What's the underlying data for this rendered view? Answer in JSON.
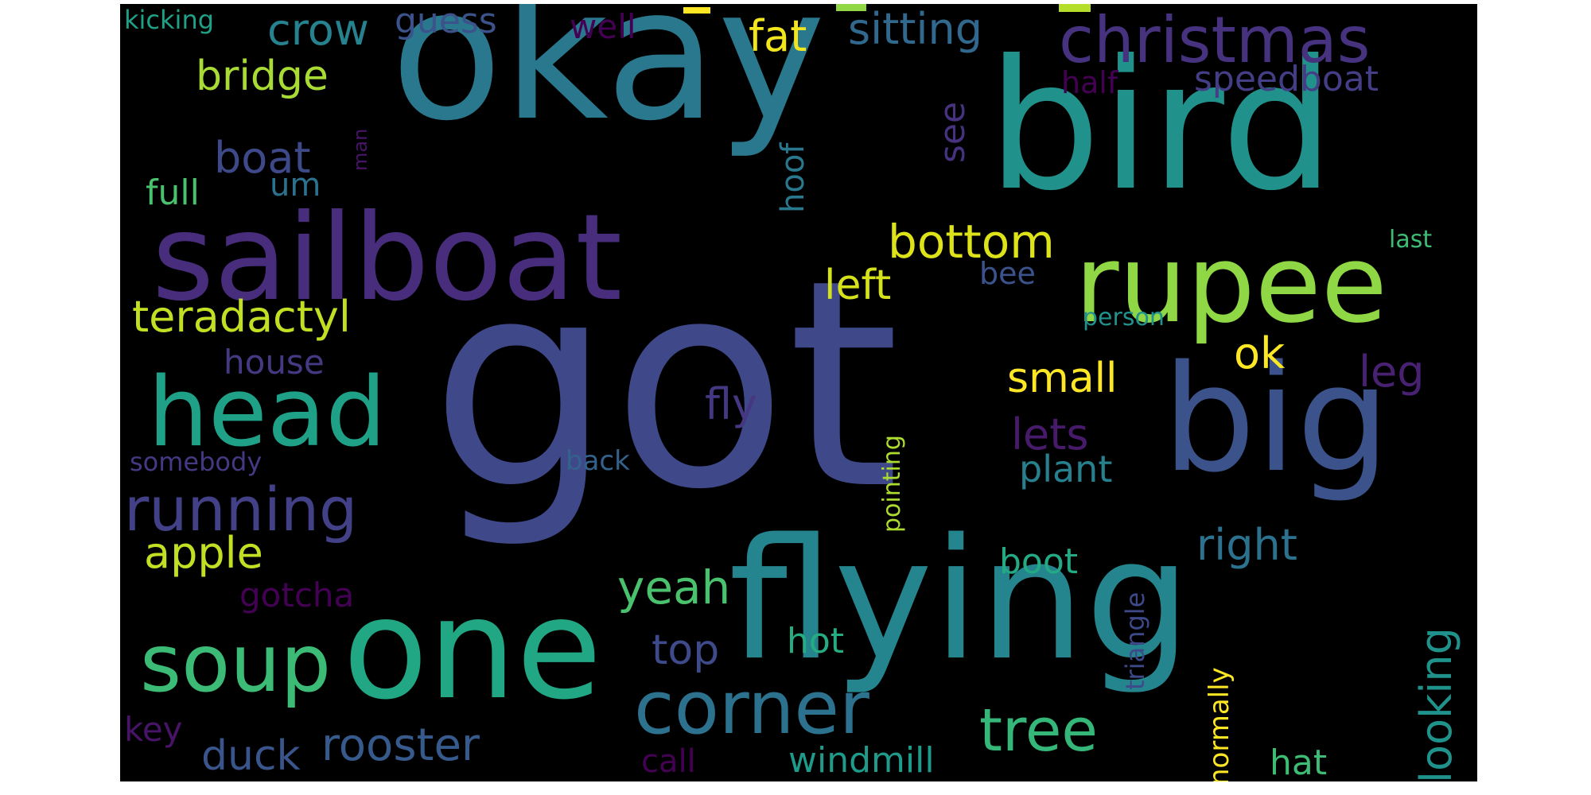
{
  "words": [
    {
      "text": "got",
      "color": "#3f4889"
    },
    {
      "text": "okay",
      "color": "#2a788e"
    },
    {
      "text": "bird",
      "color": "#21918c"
    },
    {
      "text": "sailboat",
      "color": "#472d7b"
    },
    {
      "text": "flying",
      "color": "#25858e"
    },
    {
      "text": "one",
      "color": "#22a785"
    },
    {
      "text": "rupee",
      "color": "#8fd744"
    },
    {
      "text": "big",
      "color": "#3b528b"
    },
    {
      "text": "head",
      "color": "#1fa187"
    },
    {
      "text": "christmas",
      "color": "#46327e"
    },
    {
      "text": "soup",
      "color": "#3bbb75"
    },
    {
      "text": "corner",
      "color": "#2c728e"
    },
    {
      "text": "running",
      "color": "#424086"
    },
    {
      "text": "tree",
      "color": "#35b779"
    },
    {
      "text": "bottom",
      "color": "#dde318"
    },
    {
      "text": "rooster",
      "color": "#375a8c"
    },
    {
      "text": "teradactyl",
      "color": "#c2df23"
    },
    {
      "text": "yeah",
      "color": "#4ac16d"
    },
    {
      "text": "sitting",
      "color": "#31688e"
    },
    {
      "text": "crow",
      "color": "#26828e"
    },
    {
      "text": "bridge",
      "color": "#a8db34"
    },
    {
      "text": "apple",
      "color": "#c2df23"
    },
    {
      "text": "left",
      "color": "#d5e21a"
    },
    {
      "text": "boat",
      "color": "#3e4989"
    },
    {
      "text": "small",
      "color": "#fde725"
    },
    {
      "text": "right",
      "color": "#2c728e"
    },
    {
      "text": "looking",
      "color": "#20928c"
    },
    {
      "text": "speedboat",
      "color": "#433e85"
    },
    {
      "text": "fat",
      "color": "#f1e51d"
    },
    {
      "text": "ok",
      "color": "#fde725"
    },
    {
      "text": "lets",
      "color": "#481a6c"
    },
    {
      "text": "fly",
      "color": "#453781"
    },
    {
      "text": "top",
      "color": "#3e4a89"
    },
    {
      "text": "duck",
      "color": "#3a548c"
    },
    {
      "text": "leg",
      "color": "#482173"
    },
    {
      "text": "plant",
      "color": "#27808e"
    },
    {
      "text": "full",
      "color": "#4ac16d"
    },
    {
      "text": "windmill",
      "color": "#1e9b8a"
    },
    {
      "text": "guess",
      "color": "#3b528b"
    },
    {
      "text": "gotcha",
      "color": "#440154"
    },
    {
      "text": "boot",
      "color": "#23a983"
    },
    {
      "text": "hat",
      "color": "#3dbc74"
    },
    {
      "text": "house",
      "color": "#443a83"
    },
    {
      "text": "well",
      "color": "#440154"
    },
    {
      "text": "see",
      "color": "#46327e"
    },
    {
      "text": "hoof",
      "color": "#2a788e"
    },
    {
      "text": "half",
      "color": "#440154"
    },
    {
      "text": "call",
      "color": "#440154"
    },
    {
      "text": "hot",
      "color": "#25ac82"
    },
    {
      "text": "key",
      "color": "#481467"
    },
    {
      "text": "um",
      "color": "#2c728e"
    },
    {
      "text": "normally",
      "color": "#fde725"
    },
    {
      "text": "triangle",
      "color": "#3e4989"
    },
    {
      "text": "pointing",
      "color": "#addc30"
    },
    {
      "text": "bee",
      "color": "#3b528b"
    },
    {
      "text": "kicking",
      "color": "#1fa187"
    },
    {
      "text": "somebody",
      "color": "#443983"
    },
    {
      "text": "back",
      "color": "#33628d"
    },
    {
      "text": "person",
      "color": "#21918c"
    },
    {
      "text": "last",
      "color": "#3dbc74"
    },
    {
      "text": "man",
      "color": "#481467"
    }
  ],
  "blobs": [
    {
      "color": "#fde725"
    },
    {
      "color": "#8fd744"
    },
    {
      "color": "#b5de2b"
    }
  ]
}
